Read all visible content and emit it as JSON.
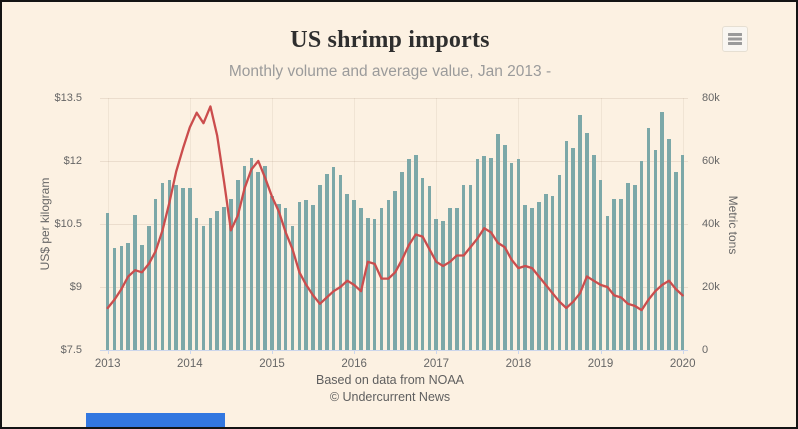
{
  "colors": {
    "background": "#fcf1e2",
    "frame_border": "#141414",
    "bar": "#7ca8a8",
    "line": "#cb4d4d",
    "axis_text": "#666666",
    "title_text": "#2e2e2e",
    "subtitle_text": "#9b9b9b",
    "credits_text": "#5f5f5f",
    "axis_line": "#ccd6eb",
    "bottom_left_bar": "#3277e0"
  },
  "header": {
    "title": "US shrimp imports",
    "subtitle": "Monthly volume and average value, Jan 2013 -",
    "menu_icon": "hamburger-menu-icon"
  },
  "footer": {
    "line1": "Based on data from NOAA",
    "line2": "© Undercurrent News"
  },
  "chart_data": {
    "type": "combo: monthly columns (volume) + line (average value)",
    "x_start": "Jan 2013",
    "x_end": "Jan 2020",
    "x_tick_labels": [
      "2013",
      "2014",
      "2015",
      "2016",
      "2017",
      "2018",
      "2019",
      "2020"
    ],
    "left_axis": {
      "title": "US$ per kilogram",
      "tick_labels": [
        "$13.5",
        "$12",
        "$10.5",
        "$9",
        "$7.5"
      ],
      "min": 7.5,
      "max": 13.5
    },
    "right_axis": {
      "title": "Metric tons",
      "tick_labels": [
        "80k",
        "60k",
        "40k",
        "20k",
        "0"
      ],
      "min": 0,
      "max": 80000
    },
    "legend": "none",
    "grid": "faint horizontal lines at each left-axis tick; very faint vertical lines at year ticks",
    "series": [
      {
        "name": "Monthly import volume",
        "type": "column",
        "axis": "right",
        "unit": "thousand metric tons",
        "values": [
          43.5,
          32.5,
          33,
          34,
          43,
          33.5,
          39.5,
          48,
          53,
          54,
          52.5,
          51.5,
          51.5,
          42,
          39.5,
          42,
          44,
          45.5,
          48,
          54,
          58.5,
          61,
          56.5,
          58.5,
          49,
          46.5,
          45,
          39.5,
          47,
          47.5,
          46,
          52.5,
          56,
          58,
          55.5,
          49.5,
          47.5,
          45,
          42,
          41.5,
          45,
          47.5,
          50.5,
          56.5,
          60.5,
          62,
          54.5,
          52,
          41.5,
          41,
          45,
          45,
          52.5,
          52.5,
          60.5,
          61.5,
          61,
          68.5,
          65,
          59.5,
          60.5,
          46,
          45,
          47,
          49.5,
          49,
          55.5,
          66.5,
          64,
          74.5,
          69,
          62,
          54,
          42.5,
          48,
          48,
          53,
          52.5,
          60,
          70.5,
          63.5,
          75.5,
          67,
          56.5,
          62
        ]
      },
      {
        "name": "Average value",
        "type": "line",
        "axis": "left",
        "unit": "US$ per kilogram",
        "values": [
          8.5,
          8.7,
          8.95,
          9.25,
          9.4,
          9.35,
          9.55,
          9.85,
          10.35,
          11.0,
          11.75,
          12.3,
          12.8,
          13.15,
          12.9,
          13.3,
          12.6,
          11.5,
          10.35,
          10.7,
          11.35,
          11.8,
          12.0,
          11.6,
          11.15,
          10.8,
          10.3,
          9.9,
          9.35,
          9.05,
          8.8,
          8.6,
          8.75,
          8.9,
          9.0,
          9.15,
          9.05,
          8.9,
          9.6,
          9.55,
          9.2,
          9.2,
          9.35,
          9.65,
          10.0,
          10.25,
          10.2,
          9.9,
          9.6,
          9.5,
          9.6,
          9.75,
          9.75,
          9.95,
          10.15,
          10.4,
          10.3,
          10.05,
          9.95,
          9.65,
          9.45,
          9.5,
          9.45,
          9.25,
          9.05,
          8.85,
          8.65,
          8.5,
          8.65,
          8.85,
          9.25,
          9.15,
          9.05,
          9.0,
          8.8,
          8.75,
          8.6,
          8.55,
          8.45,
          8.7,
          8.9,
          9.05,
          9.15,
          8.95,
          8.8
        ]
      }
    ]
  }
}
